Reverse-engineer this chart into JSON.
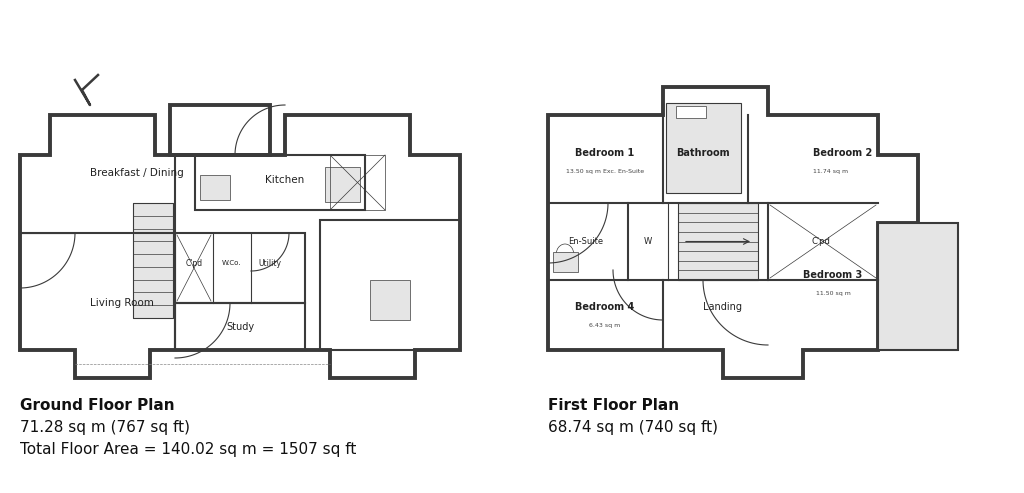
{
  "bg_color": "#ffffff",
  "wall_color": "#3a3a3a",
  "gray_fill": "#c8c8c8",
  "light_fill": "#e5e5e5",
  "dashed_color": "#888888",
  "ground_floor_label": "Ground Floor Plan",
  "ground_floor_area": "71.28 sq m (767 sq ft)",
  "total_floor_area": "Total Floor Area = 140.02 sq m = 1507 sq ft",
  "first_floor_label": "First Floor Plan",
  "first_floor_area": "68.74 sq m (740 sq ft)"
}
